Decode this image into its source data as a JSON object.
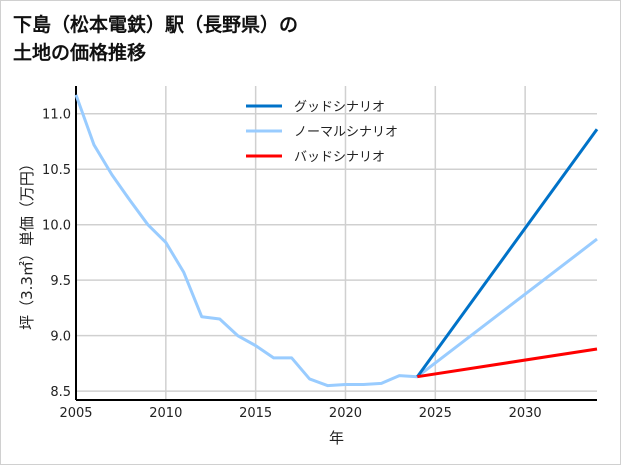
{
  "chart_data": {
    "type": "line",
    "title_lines": [
      "下島（松本電鉄）駅（長野県）の",
      "土地の価格推移"
    ],
    "xlabel": "年",
    "ylabel": "坪（3.3㎡）単価（万円）",
    "xlim": [
      2005,
      2034
    ],
    "ylim": [
      8.42,
      11.25
    ],
    "xticks": [
      2005,
      2010,
      2015,
      2020,
      2025,
      2030
    ],
    "yticks": [
      8.5,
      9.0,
      9.5,
      10.0,
      10.5,
      11.0
    ],
    "ytick_labels": [
      "8.5",
      "9.0",
      "9.5",
      "10.0",
      "10.5",
      "11.0"
    ],
    "grid": true,
    "legend_position": "top-center",
    "series": [
      {
        "name": "グッドシナリオ",
        "color": "#0072c8",
        "x": [
          2024,
          2034
        ],
        "y": [
          8.63,
          10.86
        ]
      },
      {
        "name": "ノーマルシナリオ",
        "color": "#99ccff",
        "x": [
          2005,
          2006,
          2007,
          2008,
          2009,
          2010,
          2011,
          2012,
          2013,
          2014,
          2015,
          2016,
          2017,
          2018,
          2019,
          2020,
          2021,
          2022,
          2023,
          2024,
          2034
        ],
        "y": [
          11.17,
          10.72,
          10.45,
          10.22,
          10.0,
          9.84,
          9.57,
          9.17,
          9.15,
          9.0,
          8.91,
          8.8,
          8.8,
          8.61,
          8.55,
          8.56,
          8.56,
          8.57,
          8.64,
          8.63,
          9.87
        ]
      },
      {
        "name": "バッドシナリオ",
        "color": "#ff0000",
        "x": [
          2024,
          2034
        ],
        "y": [
          8.63,
          8.88
        ]
      }
    ]
  }
}
